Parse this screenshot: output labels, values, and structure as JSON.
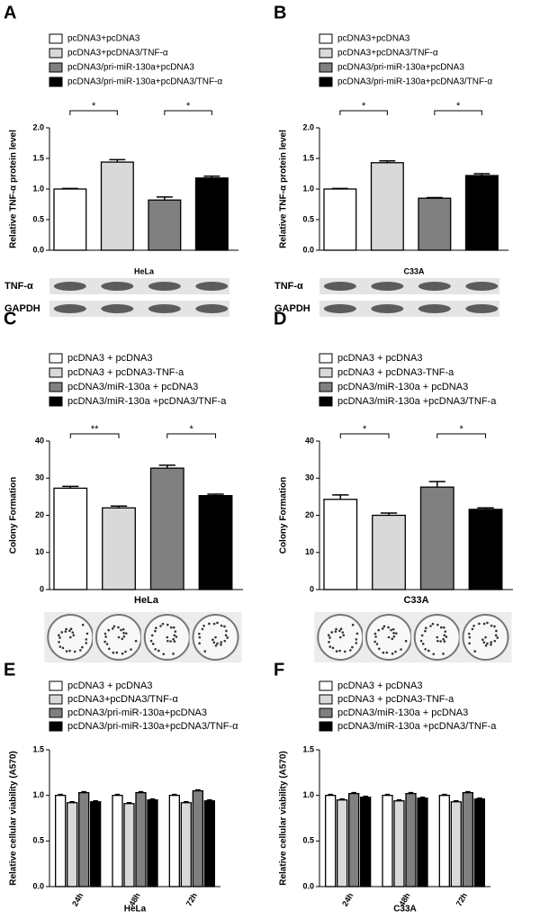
{
  "chart_data": [
    {
      "type": "bar",
      "panel_label": "A",
      "ylabel": "Relative TNF-α protein level",
      "ylim": [
        0,
        2
      ],
      "yticks": [
        {
          "value": 0,
          "label": "0.0"
        },
        0.5,
        {
          "value": 1,
          "label": "1.0"
        },
        1.5,
        {
          "value": 2,
          "label": "2.0"
        }
      ],
      "series": [
        {
          "name": "pcDNA3+pcDNA3",
          "color": "#ffffff",
          "values": [
            1.0
          ],
          "errors": [
            0.01
          ]
        },
        {
          "name": "pcDNA3+pcDNA3/TNF-α",
          "color": "#d9d9d9",
          "values": [
            1.44
          ],
          "errors": [
            0.04
          ]
        },
        {
          "name": "pcDNA3/pri-miR-130a+pcDNA3",
          "color": "#808080",
          "values": [
            0.82
          ],
          "errors": [
            0.05
          ]
        },
        {
          "name": "pcDNA3/pri-miR-130a+pcDNA3/TNF-α",
          "color": "#000000",
          "values": [
            1.18
          ],
          "errors": [
            0.03
          ]
        }
      ],
      "significance": [
        "*",
        "*"
      ],
      "cell_line": "HeLa",
      "blot_labels": [
        "TNF-α",
        "GAPDH"
      ]
    },
    {
      "type": "bar",
      "panel_label": "B",
      "ylabel": "Relative TNF-α protein level",
      "ylim": [
        0,
        2
      ],
      "yticks": [
        {
          "value": 0,
          "label": "0.0"
        },
        0.5,
        {
          "value": 1,
          "label": "1.0"
        },
        1.5,
        {
          "value": 2,
          "label": "2.0"
        }
      ],
      "series": [
        {
          "name": "pcDNA3+pcDNA3",
          "color": "#ffffff",
          "values": [
            1.0
          ],
          "errors": [
            0.01
          ]
        },
        {
          "name": "pcDNA3+pcDNA3/TNF-α",
          "color": "#d9d9d9",
          "values": [
            1.43
          ],
          "errors": [
            0.03
          ]
        },
        {
          "name": "pcDNA3/pri-miR-130a+pcDNA3",
          "color": "#808080",
          "values": [
            0.85
          ],
          "errors": [
            0.01
          ]
        },
        {
          "name": "pcDNA3/pri-miR-130a+pcDNA3/TNF-α",
          "color": "#000000",
          "values": [
            1.22
          ],
          "errors": [
            0.03
          ]
        }
      ],
      "significance": [
        "*",
        "*"
      ],
      "cell_line": "C33A",
      "blot_labels": [
        "TNF-α",
        "GAPDH"
      ]
    },
    {
      "type": "bar",
      "panel_label": "C",
      "ylabel": "Colony Formation",
      "ylim": [
        0,
        40
      ],
      "yticks": [
        0,
        10,
        20,
        30,
        40
      ],
      "series": [
        {
          "name": "pcDNA3 + pcDNA3",
          "color": "#ffffff",
          "values": [
            27.3
          ],
          "errors": [
            0.5
          ]
        },
        {
          "name": "pcDNA3 + pcDNA3-TNF-a",
          "color": "#d9d9d9",
          "values": [
            22.0
          ],
          "errors": [
            0.5
          ]
        },
        {
          "name": "pcDNA3/miR-130a + pcDNA3",
          "color": "#808080",
          "values": [
            32.7
          ],
          "errors": [
            0.8
          ]
        },
        {
          "name": "pcDNA3/miR-130a +pcDNA3/TNF-a",
          "color": "#000000",
          "values": [
            25.3
          ],
          "errors": [
            0.4
          ]
        }
      ],
      "significance": [
        "**",
        "*"
      ],
      "cell_line": "HeLa"
    },
    {
      "type": "bar",
      "panel_label": "D",
      "ylabel": "Colony Formation",
      "ylim": [
        0,
        40
      ],
      "yticks": [
        0,
        10,
        20,
        30,
        40
      ],
      "series": [
        {
          "name": "pcDNA3 + pcDNA3",
          "color": "#ffffff",
          "values": [
            24.3
          ],
          "errors": [
            1.2
          ]
        },
        {
          "name": "pcDNA3 + pcDNA3-TNF-a",
          "color": "#d9d9d9",
          "values": [
            20.0
          ],
          "errors": [
            0.6
          ]
        },
        {
          "name": "pcDNA3/miR-130a + pcDNA3",
          "color": "#808080",
          "values": [
            27.6
          ],
          "errors": [
            1.5
          ]
        },
        {
          "name": "pcDNA3/miR-130a +pcDNA3/TNF-a",
          "color": "#000000",
          "values": [
            21.6
          ],
          "errors": [
            0.4
          ]
        }
      ],
      "significance": [
        "*",
        "*"
      ],
      "cell_line": "C33A"
    },
    {
      "type": "bar",
      "panel_label": "E",
      "ylabel": "Relative cellular viability (A570)",
      "xlabel": "HeLa",
      "ylim": [
        0,
        1.5
      ],
      "yticks": [
        {
          "value": 0,
          "label": "0.0"
        },
        0.5,
        {
          "value": 1,
          "label": "1.0"
        },
        1.5
      ],
      "categories": [
        "24h",
        "48h",
        "72h"
      ],
      "series": [
        {
          "name": "pcDNA3 + pcDNA3",
          "color": "#ffffff",
          "values": [
            1.0,
            1.0,
            1.0
          ],
          "errors": [
            0.01,
            0.01,
            0.01
          ]
        },
        {
          "name": "pcDNA3+pcDNA3/TNF-α",
          "color": "#d9d9d9",
          "values": [
            0.92,
            0.91,
            0.92
          ],
          "errors": [
            0.01,
            0.01,
            0.01
          ]
        },
        {
          "name": "pcDNA3/pri-miR-130a+pcDNA3",
          "color": "#808080",
          "values": [
            1.03,
            1.03,
            1.05
          ],
          "errors": [
            0.01,
            0.01,
            0.01
          ]
        },
        {
          "name": "pcDNA3/pri-miR-130a+pcDNA3/TNF-α",
          "color": "#000000",
          "values": [
            0.93,
            0.95,
            0.94
          ],
          "errors": [
            0.01,
            0.01,
            0.01
          ]
        }
      ]
    },
    {
      "type": "bar",
      "panel_label": "F",
      "ylabel": "Relative cellular viability (A570)",
      "xlabel": "C33A",
      "ylim": [
        0,
        1.5
      ],
      "yticks": [
        {
          "value": 0,
          "label": "0.0"
        },
        0.5,
        {
          "value": 1,
          "label": "1.0"
        },
        1.5
      ],
      "categories": [
        "24h",
        "48h",
        "72h"
      ],
      "series": [
        {
          "name": "pcDNA3 + pcDNA3",
          "color": "#ffffff",
          "values": [
            1.0,
            1.0,
            1.0
          ],
          "errors": [
            0.01,
            0.01,
            0.01
          ]
        },
        {
          "name": "pcDNA3 + pcDNA3-TNF-a",
          "color": "#d9d9d9",
          "values": [
            0.95,
            0.94,
            0.93
          ],
          "errors": [
            0.01,
            0.01,
            0.01
          ]
        },
        {
          "name": "pcDNA3/miR-130a + pcDNA3",
          "color": "#808080",
          "values": [
            1.02,
            1.02,
            1.03
          ],
          "errors": [
            0.01,
            0.01,
            0.01
          ]
        },
        {
          "name": "pcDNA3/miR-130a +pcDNA3/TNF-a",
          "color": "#000000",
          "values": [
            0.98,
            0.97,
            0.96
          ],
          "errors": [
            0.01,
            0.01,
            0.01
          ]
        }
      ]
    }
  ]
}
